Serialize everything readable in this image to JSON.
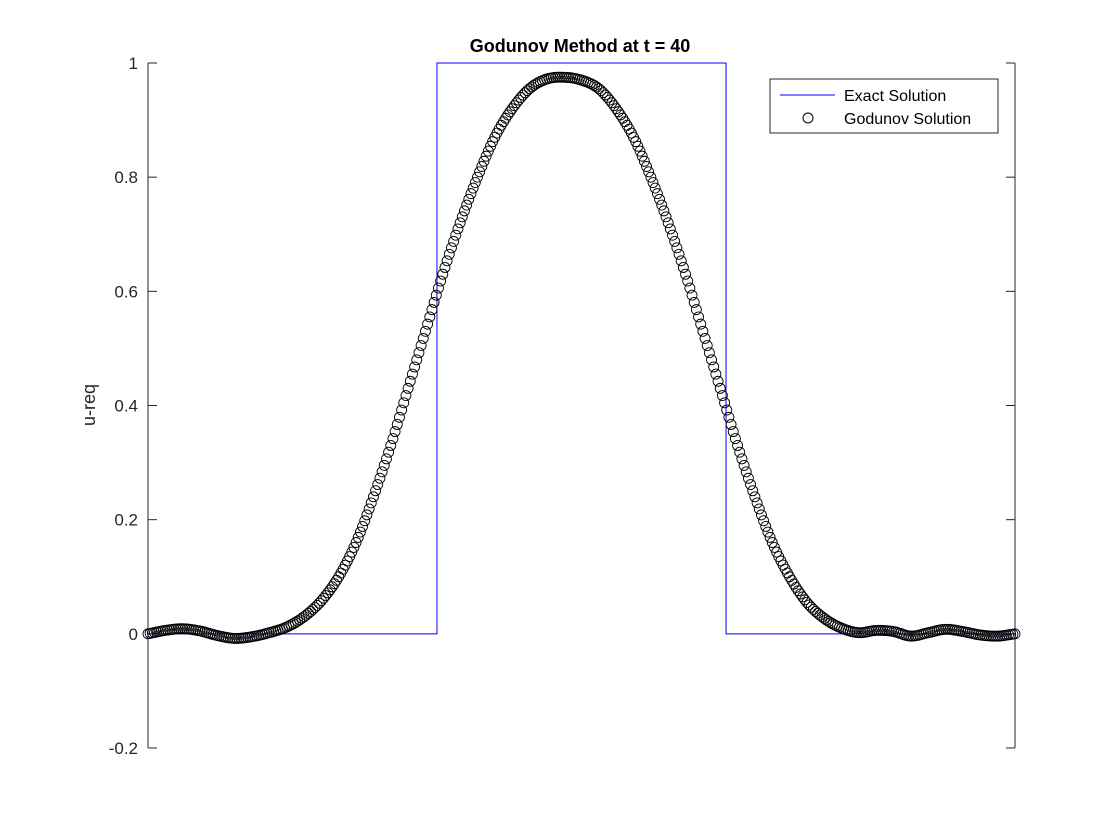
{
  "chart_data": {
    "type": "line",
    "title": "Godunov Method at t = 40",
    "xlabel": "",
    "ylabel": "u-req",
    "xlim": [
      0,
      1
    ],
    "ylim": [
      -0.2,
      1
    ],
    "yticks": [
      -0.2,
      0,
      0.2,
      0.4,
      0.6,
      0.8,
      1
    ],
    "ytick_labels": [
      "-0.2",
      "0",
      "0.2",
      "0.4",
      "0.6",
      "0.8",
      "1"
    ],
    "xticks": [],
    "grid": false,
    "legend_position": "top-right",
    "colors": {
      "exact": "#0000ff",
      "godunov": "#000000",
      "axes": "#262626"
    },
    "series": [
      {
        "name": "Exact Solution",
        "style": "line",
        "x": [
          0,
          0.3333,
          0.3333,
          0.6667,
          0.6667,
          1
        ],
        "values": [
          0,
          0,
          1,
          1,
          0,
          0
        ]
      },
      {
        "name": "Godunov Solution",
        "style": "markers",
        "marker": "circle-open",
        "x": [
          0,
          0.02,
          0.04,
          0.06,
          0.08,
          0.1,
          0.12,
          0.14,
          0.16,
          0.18,
          0.2,
          0.22,
          0.24,
          0.26,
          0.28,
          0.3,
          0.32,
          0.34,
          0.36,
          0.38,
          0.4,
          0.42,
          0.44,
          0.46,
          0.48,
          0.5,
          0.52,
          0.54,
          0.56,
          0.58,
          0.6,
          0.62,
          0.64,
          0.66,
          0.68,
          0.7,
          0.72,
          0.74,
          0.76,
          0.78,
          0.8,
          0.82,
          0.84,
          0.86,
          0.88,
          0.9,
          0.92,
          0.94,
          0.96,
          0.98,
          1
        ],
        "values": [
          0,
          0.006,
          0.009,
          0.005,
          -0.003,
          -0.008,
          -0.005,
          0.002,
          0.012,
          0.03,
          0.058,
          0.1,
          0.16,
          0.24,
          0.33,
          0.43,
          0.53,
          0.63,
          0.72,
          0.8,
          0.87,
          0.92,
          0.955,
          0.972,
          0.975,
          0.97,
          0.955,
          0.92,
          0.87,
          0.8,
          0.72,
          0.63,
          0.53,
          0.43,
          0.33,
          0.24,
          0.16,
          0.1,
          0.055,
          0.027,
          0.01,
          0.002,
          0.006,
          0.004,
          -0.004,
          0.002,
          0.008,
          0.004,
          -0.002,
          -0.004,
          0
        ]
      }
    ]
  }
}
